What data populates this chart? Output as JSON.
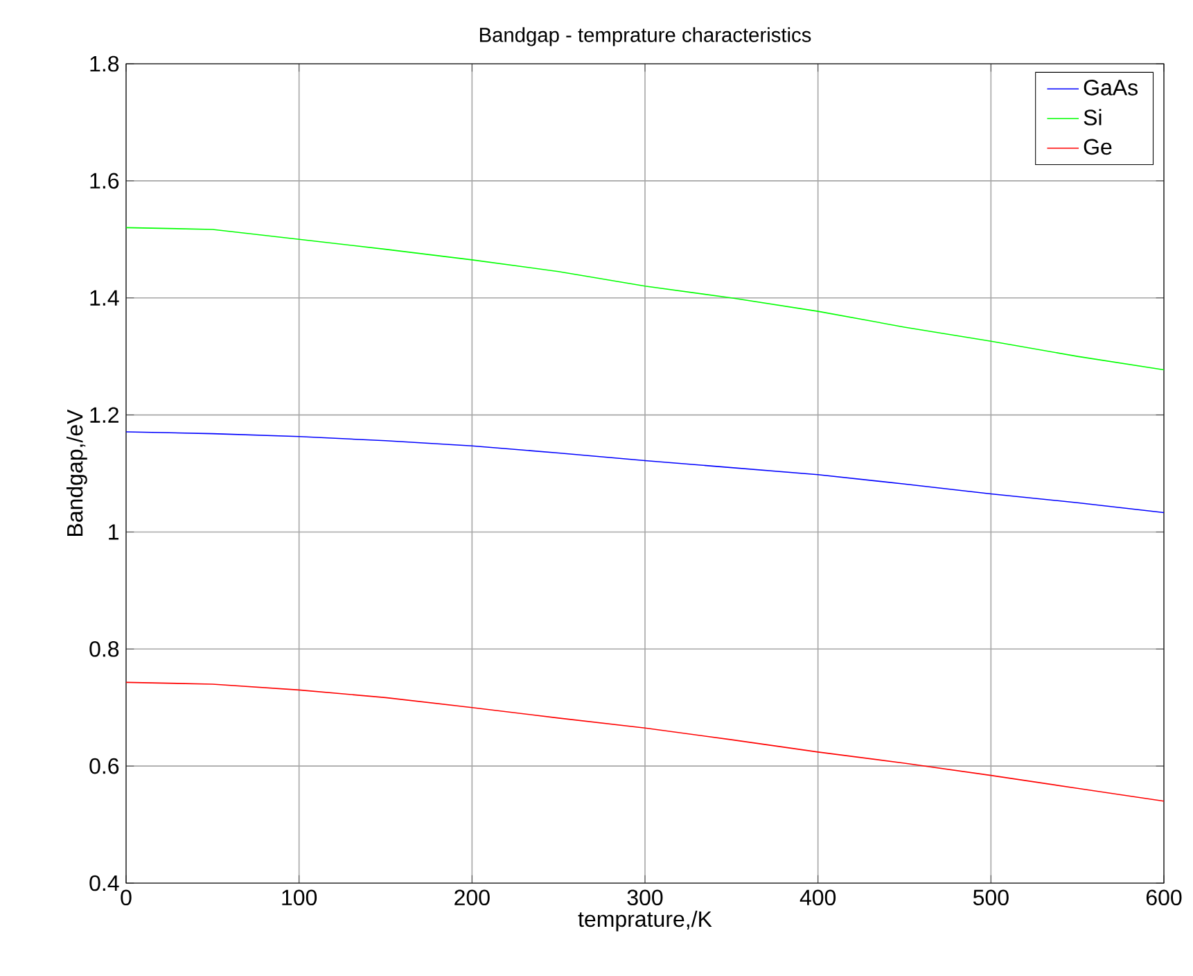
{
  "chart_data": {
    "type": "line",
    "title": "Bandgap - temprature characteristics",
    "xlabel": "temprature,/K",
    "ylabel": "Bandgap,/eV",
    "x": [
      0,
      50,
      100,
      150,
      200,
      250,
      300,
      350,
      400,
      450,
      500,
      550,
      600
    ],
    "series": [
      {
        "name": "GaAs",
        "color": "#0000ff",
        "values": [
          1.171,
          1.168,
          1.163,
          1.156,
          1.147,
          1.135,
          1.122,
          1.11,
          1.098,
          1.082,
          1.065,
          1.05,
          1.033
        ]
      },
      {
        "name": "Si",
        "color": "#00ff00",
        "values": [
          1.52,
          1.517,
          1.5,
          1.483,
          1.465,
          1.445,
          1.42,
          1.4,
          1.377,
          1.35,
          1.326,
          1.3,
          1.277
        ]
      },
      {
        "name": "Ge",
        "color": "#ff0000",
        "values": [
          0.743,
          0.74,
          0.73,
          0.717,
          0.7,
          0.682,
          0.665,
          0.645,
          0.624,
          0.605,
          0.584,
          0.562,
          0.54
        ]
      }
    ],
    "xlim": [
      0,
      600
    ],
    "ylim": [
      0.4,
      1.8
    ],
    "xticks": [
      0,
      100,
      200,
      300,
      400,
      500,
      600
    ],
    "yticks": [
      0.4,
      0.6,
      0.8,
      1,
      1.2,
      1.4,
      1.6,
      1.8
    ],
    "grid": true,
    "legend": "top right",
    "marker": "none",
    "line_style": "solid"
  }
}
